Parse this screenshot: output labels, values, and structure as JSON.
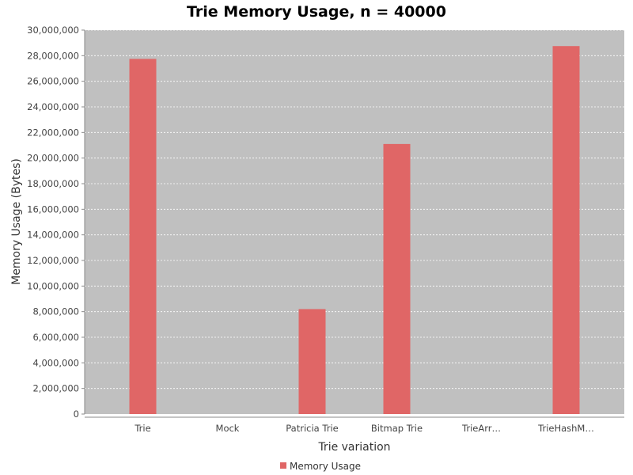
{
  "chart_data": {
    "type": "bar",
    "title": "Trie Memory Usage, n = 40000",
    "xlabel": "Trie variation",
    "ylabel": "Memory Usage (Bytes)",
    "categories": [
      "Trie",
      "Mock",
      "Patricia Trie",
      "Bitmap Trie",
      "TrieArr…",
      "TrieHashM…"
    ],
    "series": [
      {
        "name": "Memory Usage",
        "values": [
          27750000,
          0,
          8200000,
          21100000,
          0,
          28750000
        ],
        "color": "#e06666"
      }
    ],
    "ylim": [
      0,
      30000000
    ],
    "yticks": [
      "0",
      "2,000,000",
      "4,000,000",
      "6,000,000",
      "8,000,000",
      "10,000,000",
      "12,000,000",
      "14,000,000",
      "16,000,000",
      "18,000,000",
      "20,000,000",
      "22,000,000",
      "24,000,000",
      "26,000,000",
      "28,000,000",
      "30,000,000"
    ],
    "grid": true,
    "plot_background": "#c0c0c0",
    "legend_position": "bottom"
  }
}
